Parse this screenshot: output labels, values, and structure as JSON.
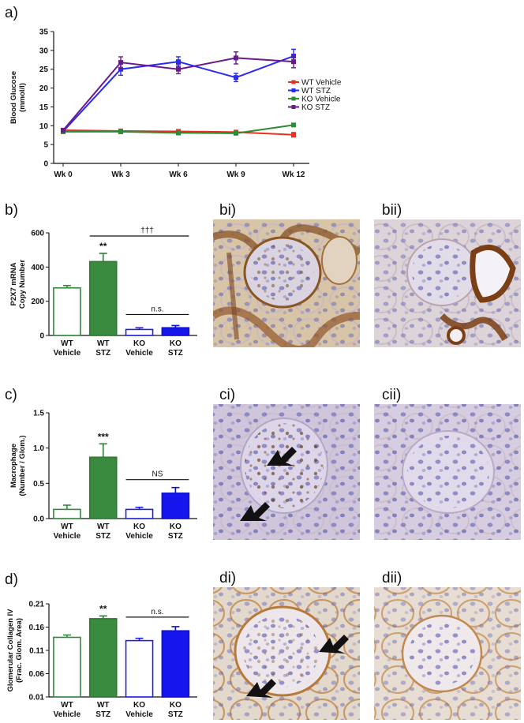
{
  "chart_data": [
    {
      "id": "a",
      "type": "line",
      "panel_label": "a)",
      "ylabel": [
        "Blood Glucose",
        "(mmol/l)"
      ],
      "categories": [
        "Wk 0",
        "Wk 3",
        "Wk 6",
        "Wk 9",
        "Wk 12"
      ],
      "ylim": [
        0,
        35
      ],
      "yticks": [
        0,
        5,
        10,
        15,
        20,
        25,
        30,
        35
      ],
      "legend_position": "right",
      "series": [
        {
          "name": "WT Vehicle",
          "color": "#e8301e",
          "values": [
            8.8,
            8.6,
            8.5,
            8.3,
            7.6
          ],
          "errors": [
            0.4,
            0.5,
            0.4,
            0.4,
            0.6
          ]
        },
        {
          "name": "WT STZ",
          "color": "#2b2bef",
          "values": [
            8.5,
            25.0,
            27.0,
            22.8,
            28.5
          ],
          "errors": [
            0.5,
            1.6,
            1.3,
            1.1,
            1.8
          ]
        },
        {
          "name": "KO Vehicle",
          "color": "#2e8b3a",
          "values": [
            8.4,
            8.4,
            8.1,
            8.0,
            10.2
          ],
          "errors": [
            0.4,
            0.5,
            0.5,
            0.3,
            0.4
          ]
        },
        {
          "name": "KO STZ",
          "color": "#6a1a8a",
          "values": [
            8.8,
            26.8,
            25.0,
            28.0,
            27.0
          ],
          "errors": [
            0.5,
            1.5,
            1.2,
            1.6,
            1.6
          ]
        }
      ]
    },
    {
      "id": "b",
      "type": "bar",
      "panel_label": "b)",
      "ylabel": [
        "P2X7 mRNA",
        "Copy Number"
      ],
      "categories": [
        [
          "WT",
          "Vehicle"
        ],
        [
          "WT",
          "STZ"
        ],
        [
          "KO",
          "Vehicle"
        ],
        [
          "KO",
          "STZ"
        ]
      ],
      "values": [
        278,
        432,
        35,
        45
      ],
      "errors": [
        14,
        48,
        10,
        13
      ],
      "ylim": [
        0,
        600
      ],
      "yticks": [
        0,
        200,
        400,
        600
      ],
      "annotations": {
        "star": "**",
        "bracket_top": "†††",
        "bracket_low": "n.s."
      }
    },
    {
      "id": "c",
      "type": "bar",
      "panel_label": "c)",
      "ylabel": [
        "Macrophage",
        "(Number / Glom.)"
      ],
      "categories": [
        [
          "WT",
          "Vehicle"
        ],
        [
          "WT",
          "STZ"
        ],
        [
          "KO",
          "Vehicle"
        ],
        [
          "KO",
          "STZ"
        ]
      ],
      "values": [
        0.13,
        0.87,
        0.13,
        0.36
      ],
      "errors": [
        0.06,
        0.19,
        0.03,
        0.08
      ],
      "ylim": [
        0,
        1.5
      ],
      "yticks": [
        0.0,
        0.5,
        1.0,
        1.5
      ],
      "yticklabels": [
        "0.0",
        "0.5",
        "1.0",
        "1.5"
      ],
      "annotations": {
        "star": "***",
        "bracket_low": "NS"
      }
    },
    {
      "id": "d",
      "type": "bar",
      "panel_label": "d)",
      "ylabel": [
        "Glomerular Collagen IV",
        "(Frac. Glom. Area)"
      ],
      "categories": [
        [
          "WT",
          "Vehicle"
        ],
        [
          "WT",
          "STZ"
        ],
        [
          "KO",
          "Vehicle"
        ],
        [
          "KO",
          "STZ"
        ]
      ],
      "values": [
        0.138,
        0.178,
        0.131,
        0.152
      ],
      "errors": [
        0.005,
        0.006,
        0.005,
        0.009
      ],
      "ylim": [
        0.01,
        0.21
      ],
      "yticks": [
        0.01,
        0.06,
        0.11,
        0.16,
        0.21
      ],
      "yticklabels": [
        "0.01",
        "0.06",
        "0.11",
        "0.16",
        "0.21"
      ],
      "annotations": {
        "star": "**",
        "bracket_low": "n.s."
      }
    }
  ],
  "bar_styles": [
    {
      "fill": "#ffffff",
      "stroke": "#2e8b3a"
    },
    {
      "fill": "#3a8a3f",
      "stroke": "#2e7a34"
    },
    {
      "fill": "#ffffff",
      "stroke": "#2020e0"
    },
    {
      "fill": "#1515ee",
      "stroke": "#1010d0"
    }
  ],
  "micrographs": [
    {
      "label": "bi)",
      "stain": "brown"
    },
    {
      "label": "bii)",
      "stain": "brown-light"
    },
    {
      "label": "ci)",
      "stain": "macrophage"
    },
    {
      "label": "cii)",
      "stain": "plain"
    },
    {
      "label": "di)",
      "stain": "collagen"
    },
    {
      "label": "dii)",
      "stain": "collagen-light"
    }
  ]
}
